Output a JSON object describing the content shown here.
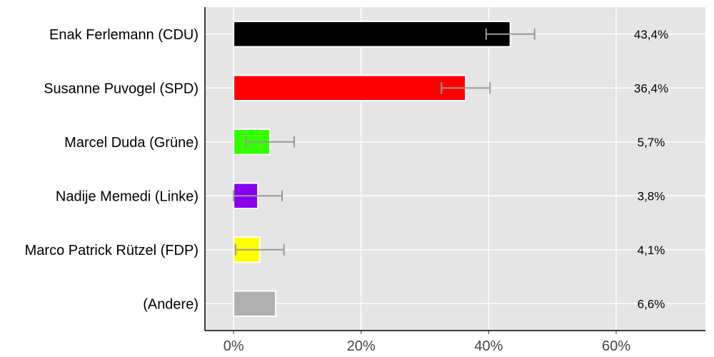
{
  "chart_data": {
    "type": "bar",
    "orientation": "horizontal",
    "title": "",
    "xlabel": "",
    "ylabel": "",
    "xlim": [
      -0.045,
      0.74
    ],
    "grid": true,
    "categories": [
      "Enak Ferlemann (CDU)",
      "Susanne Puvogel (SPD)",
      "Marcel Duda (Grüne)",
      "Nadije Memedi (Linke)",
      "Marco Patrick Rützel (FDP)",
      "(Andere)"
    ],
    "values": [
      0.434,
      0.364,
      0.057,
      0.038,
      0.041,
      0.066
    ],
    "value_labels": [
      "43,4%",
      "36,4%",
      "5,7%",
      "3,8%",
      "4,1%",
      "6,6%"
    ],
    "error_bars": [
      [
        0.396,
        0.472
      ],
      [
        0.326,
        0.402
      ],
      [
        0.019,
        0.095
      ],
      [
        0.0,
        0.076
      ],
      [
        0.003,
        0.079
      ],
      null
    ],
    "colors": [
      "#000000",
      "#ff0000",
      "#33ff00",
      "#8800ee",
      "#ffff00",
      "#b0b0b0"
    ],
    "x_ticks": [
      0,
      0.2,
      0.4,
      0.6
    ],
    "x_tick_labels": [
      "0%",
      "20%",
      "40%",
      "60%"
    ],
    "panel_background": "#e5e5e5",
    "grid_color": "#ffffff",
    "error_bar_color": "#999999"
  }
}
